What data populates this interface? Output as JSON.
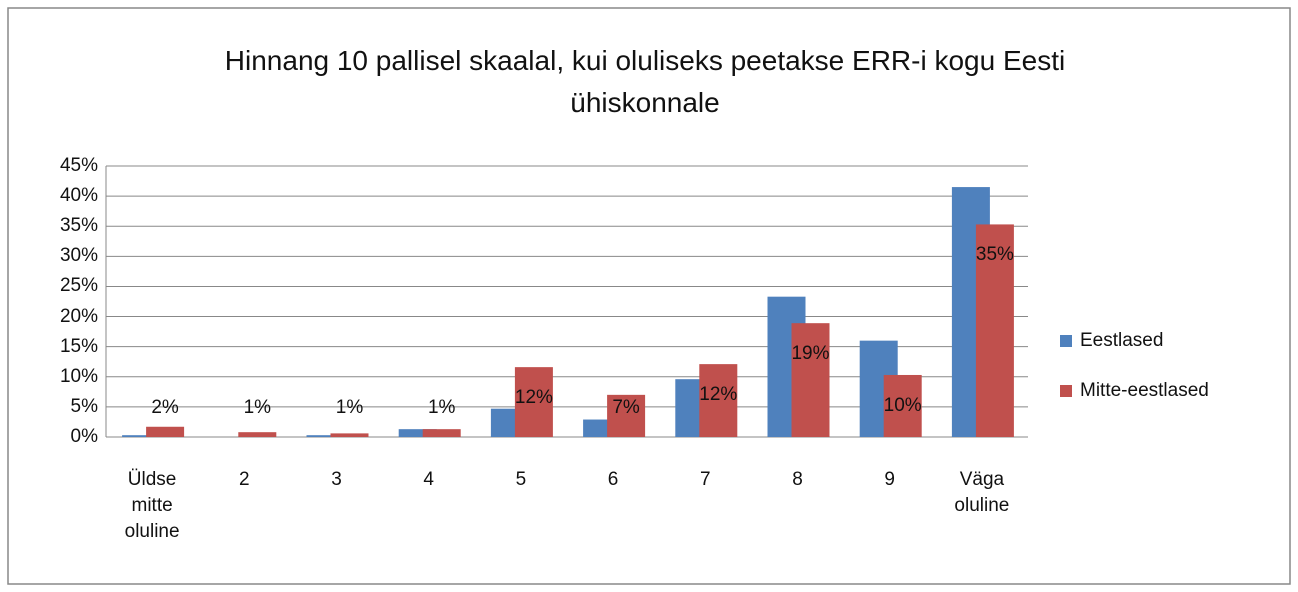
{
  "chart_data": {
    "type": "bar",
    "title": "Hinnang 10 pallisel skaalal, kui oluliseks peetakse ERR-i kogu Eesti ühiskonnale",
    "categories": [
      "Üldse mitte oluline",
      "2",
      "3",
      "4",
      "5",
      "6",
      "7",
      "8",
      "9",
      "Väga oluline"
    ],
    "series": [
      {
        "name": "Eestlased",
        "color": "#4f81bd",
        "values": [
          0.3,
          0,
          0.3,
          1.3,
          4.7,
          2.9,
          9.6,
          23.3,
          16,
          41.5
        ]
      },
      {
        "name": "Mitte-eestlased",
        "color": "#c0504d",
        "values": [
          1.7,
          0.8,
          0.6,
          1.3,
          11.6,
          7,
          12.1,
          18.9,
          10.3,
          35.3
        ],
        "value_labels": [
          "2%",
          "1%",
          "1%",
          "1%",
          "12%",
          "7%",
          "12%",
          "19%",
          "10%",
          "35%"
        ]
      }
    ],
    "ylim": [
      0,
      45
    ],
    "yticks": [
      {
        "value": 0,
        "label": "0%"
      },
      {
        "value": 5,
        "label": "5%"
      },
      {
        "value": 10,
        "label": "10%"
      },
      {
        "value": 15,
        "label": "15%"
      },
      {
        "value": 20,
        "label": "20%"
      },
      {
        "value": 25,
        "label": "25%"
      },
      {
        "value": 30,
        "label": "30%"
      },
      {
        "value": 35,
        "label": "35%"
      },
      {
        "value": 40,
        "label": "40%"
      },
      {
        "value": 45,
        "label": "45%"
      }
    ],
    "grid": true,
    "legend": "right"
  }
}
